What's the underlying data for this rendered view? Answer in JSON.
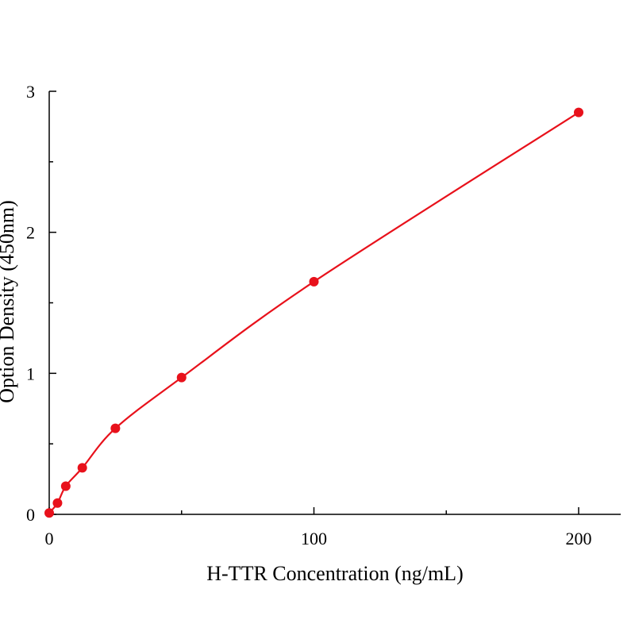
{
  "chart_data": {
    "type": "scatter",
    "title": "",
    "xlabel": "H-TTR Concentration (ng/mL)",
    "ylabel": "Option Density (450nm)",
    "xlim": [
      0,
      215
    ],
    "ylim": [
      0,
      3
    ],
    "x_ticks": [
      0,
      100,
      200
    ],
    "x_minor_ticks": [
      50,
      150
    ],
    "y_ticks": [
      0,
      1,
      2,
      3
    ],
    "y_minor_ticks": [
      0.5,
      1.5,
      2.5
    ],
    "x_tick_labels": [
      "0",
      "100",
      "200"
    ],
    "y_tick_labels": [
      "0",
      "1",
      "2",
      "3"
    ],
    "grid": false,
    "series": [
      {
        "x": [
          0,
          3.125,
          6.25,
          12.5,
          25,
          50,
          100,
          200
        ],
        "y": [
          0.01,
          0.08,
          0.2,
          0.33,
          0.61,
          0.97,
          1.65,
          2.85
        ],
        "color": "#e8111b",
        "marker": "circle",
        "fit_curve": true
      }
    ]
  }
}
